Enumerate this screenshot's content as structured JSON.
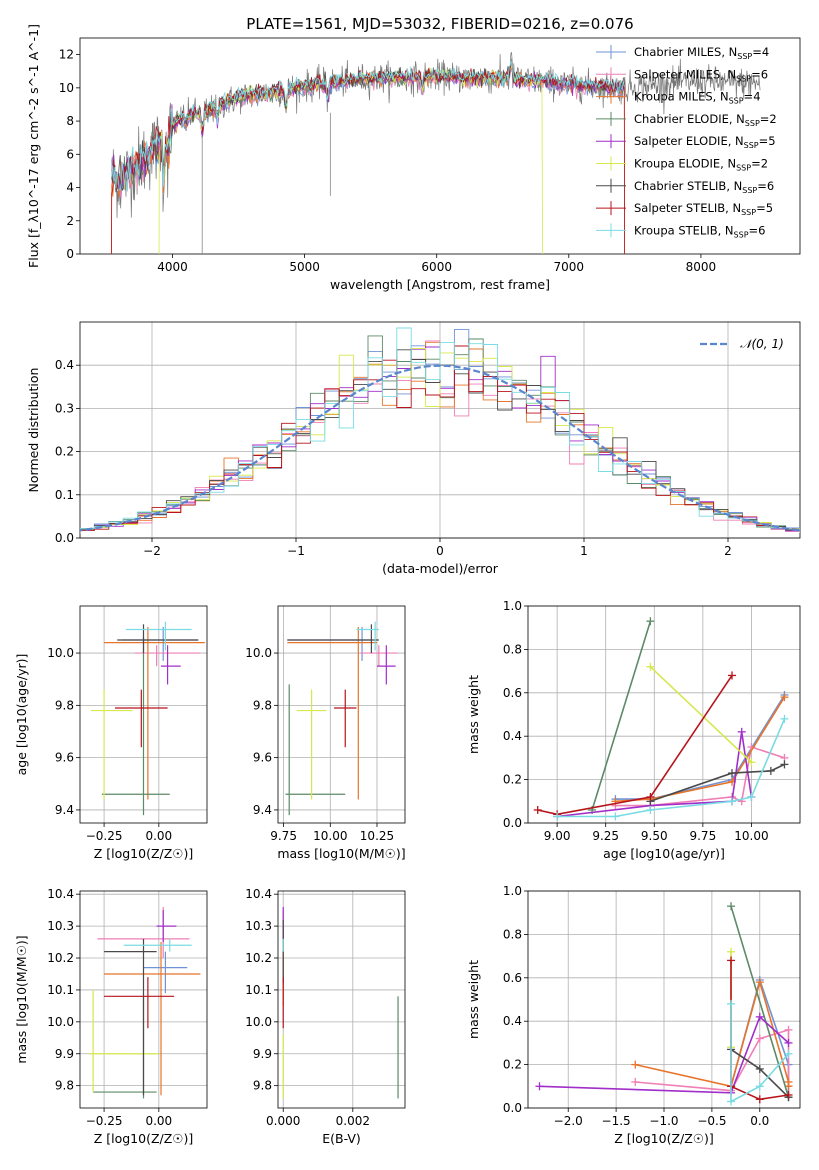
{
  "title": "PLATE=1561, MJD=53032, FIBERID=0216, z=0.076",
  "models": [
    {
      "name": "Chabrier MILES",
      "nssp": "4",
      "color": "#6f93d6"
    },
    {
      "name": "Salpeter MILES",
      "nssp": "6",
      "color": "#ef7fb5"
    },
    {
      "name": "Kroupa MILES",
      "nssp": "4",
      "color": "#e8742a"
    },
    {
      "name": "Chabrier ELODIE",
      "nssp": "2",
      "color": "#5c8a66"
    },
    {
      "name": "Salpeter ELODIE",
      "nssp": "5",
      "color": "#a12ec8"
    },
    {
      "name": "Kroupa ELODIE",
      "nssp": "2",
      "color": "#d6e84c"
    },
    {
      "name": "Chabrier STELIB",
      "nssp": "6",
      "color": "#4a4a4a"
    },
    {
      "name": "Salpeter STELIB",
      "nssp": "5",
      "color": "#b8141c"
    },
    {
      "name": "Kroupa STELIB",
      "nssp": "6",
      "color": "#79dbe3"
    }
  ],
  "chart_data": [
    {
      "id": "spectrum",
      "type": "line",
      "xlabel": "wavelength [Angstrom, rest frame]",
      "ylabel": "Flux [f_λ10^-17 erg cm^-2 s^-1 A^-1]",
      "xlim": [
        3300,
        8750
      ],
      "ylim": [
        0,
        13
      ],
      "xticks": [
        4000,
        5000,
        6000,
        7000,
        8000
      ],
      "yticks": [
        0,
        2,
        4,
        6,
        8,
        10,
        12
      ],
      "grid": false,
      "legend": "right",
      "observed_color": "#777777",
      "continuum": {
        "x": [
          3550,
          3600,
          3700,
          3800,
          3900,
          4000,
          4100,
          4200,
          4300,
          4400,
          4500,
          4600,
          4800,
          5000,
          5200,
          5400,
          5600,
          5800,
          6000,
          6200,
          6400,
          6600,
          6800,
          7000,
          7200,
          7400,
          7600,
          7800,
          8000,
          8200,
          8400
        ],
        "y": [
          4.8,
          4.2,
          5.2,
          5.8,
          6.6,
          7.8,
          8.3,
          8.5,
          8.7,
          9.1,
          9.4,
          9.6,
          9.8,
          10.1,
          10.3,
          10.5,
          10.6,
          10.6,
          10.7,
          10.6,
          10.6,
          10.5,
          10.4,
          10.2,
          10.1,
          10.0,
          10.1,
          10.3,
          10.4,
          10.3,
          10.3
        ]
      }
    },
    {
      "id": "residuals",
      "type": "histogram",
      "xlabel": "(data-model)/error",
      "ylabel": "Normed distribution",
      "xlim": [
        -2.5,
        2.5
      ],
      "ylim": [
        0,
        0.5
      ],
      "xticks": [
        -2,
        -1,
        0,
        1,
        2
      ],
      "yticks": [
        0.0,
        0.1,
        0.2,
        0.3,
        0.4
      ],
      "grid": true,
      "legend": "top-right",
      "reference_label": "𝒩(0, 1)",
      "reference_color": "#5a86cf",
      "bin_width": 0.1
    },
    {
      "id": "age-vs-Z",
      "type": "scatter",
      "xlabel": "Z [log10(Z/Z☉)]",
      "ylabel": "age  [log10(age/yr)]",
      "xlim": [
        -0.36,
        0.22
      ],
      "ylim": [
        9.35,
        10.18
      ],
      "xticks": [
        -0.25,
        0.0
      ],
      "yticks": [
        9.4,
        9.6,
        9.8,
        10.0
      ],
      "grid": true,
      "points": [
        {
          "model": 0,
          "x": 0.02,
          "y": 10.05,
          "xerr": [
            0.19,
            0.16
          ],
          "yerr": [
            0.08,
            0.05
          ]
        },
        {
          "model": 1,
          "x": -0.01,
          "y": 10.0,
          "xerr": [
            0.1,
            0.2
          ],
          "yerr": [
            0.05,
            0.03
          ]
        },
        {
          "model": 2,
          "x": -0.05,
          "y": 10.04,
          "xerr": [
            0.2,
            0.26
          ],
          "yerr": [
            0.6,
            0.06
          ]
        },
        {
          "model": 3,
          "x": -0.07,
          "y": 9.46,
          "xerr": [
            0.19,
            0.12
          ],
          "yerr": [
            0.08,
            0.6
          ]
        },
        {
          "model": 4,
          "x": 0.04,
          "y": 9.95,
          "xerr": [
            0.03,
            0.06
          ],
          "yerr": [
            0.07,
            0.08
          ]
        },
        {
          "model": 5,
          "x": -0.25,
          "y": 9.78,
          "xerr": [
            0.06,
            0.13
          ],
          "yerr": [
            0.34,
            0.08
          ]
        },
        {
          "model": 6,
          "x": -0.07,
          "y": 10.05,
          "xerr": [
            0.12,
            0.25
          ],
          "yerr": [
            0.05,
            0.06
          ]
        },
        {
          "model": 7,
          "x": -0.08,
          "y": 9.79,
          "xerr": [
            0.12,
            0.12
          ],
          "yerr": [
            0.15,
            0.07
          ]
        },
        {
          "model": 8,
          "x": 0.03,
          "y": 10.09,
          "xerr": [
            0.18,
            0.12
          ],
          "yerr": [
            0.08,
            0.03
          ]
        }
      ]
    },
    {
      "id": "age-vs-mass",
      "type": "scatter",
      "xlabel": "mass [log10(M/M☉)]",
      "ylabel": "",
      "xlim": [
        9.72,
        10.4
      ],
      "ylim": [
        9.35,
        10.18
      ],
      "xticks": [
        9.75,
        10.0,
        10.25
      ],
      "yticks": [
        9.4,
        9.6,
        9.8,
        10.0
      ],
      "grid": true,
      "points": [
        {
          "model": 0,
          "x": 10.17,
          "y": 10.05,
          "xerr": [
            0.4,
            0.05
          ],
          "yerr": [
            0.08,
            0.05
          ]
        },
        {
          "model": 1,
          "x": 10.26,
          "y": 10.0,
          "xerr": [
            0.1,
            0.1
          ],
          "yerr": [
            0.05,
            0.03
          ]
        },
        {
          "model": 2,
          "x": 10.15,
          "y": 10.04,
          "xerr": [
            0.38,
            0.1
          ],
          "yerr": [
            0.6,
            0.06
          ]
        },
        {
          "model": 3,
          "x": 9.78,
          "y": 9.46,
          "xerr": [
            0.02,
            0.3
          ],
          "yerr": [
            0.08,
            0.42
          ]
        },
        {
          "model": 4,
          "x": 10.3,
          "y": 9.95,
          "xerr": [
            0.05,
            0.05
          ],
          "yerr": [
            0.07,
            0.08
          ]
        },
        {
          "model": 5,
          "x": 9.9,
          "y": 9.78,
          "xerr": [
            0.08,
            0.08
          ],
          "yerr": [
            0.34,
            0.08
          ]
        },
        {
          "model": 6,
          "x": 10.22,
          "y": 10.05,
          "xerr": [
            0.45,
            0.04
          ],
          "yerr": [
            0.05,
            0.06
          ]
        },
        {
          "model": 7,
          "x": 10.08,
          "y": 9.79,
          "xerr": [
            0.06,
            0.06
          ],
          "yerr": [
            0.15,
            0.07
          ]
        },
        {
          "model": 8,
          "x": 10.24,
          "y": 10.09,
          "xerr": [
            0.1,
            0.02
          ],
          "yerr": [
            0.08,
            0.03
          ]
        }
      ]
    },
    {
      "id": "weight-vs-age",
      "type": "line",
      "xlabel": "age  [log10(age/yr)]",
      "ylabel": "mass weight",
      "xlim": [
        8.85,
        10.25
      ],
      "ylim": [
        0,
        1
      ],
      "xticks": [
        9.0,
        9.25,
        9.5,
        9.75,
        10.0
      ],
      "yticks": [
        0.0,
        0.2,
        0.4,
        0.6,
        0.8,
        1.0
      ],
      "grid": true,
      "series": [
        {
          "model": 0,
          "x": [
            9.3,
            9.48,
            9.9,
            10.17
          ],
          "y": [
            0.11,
            0.11,
            0.2,
            0.59
          ]
        },
        {
          "model": 1,
          "x": [
            9.3,
            9.48,
            9.9,
            9.95,
            10.0,
            10.17
          ],
          "y": [
            0.08,
            0.08,
            0.12,
            0.1,
            0.35,
            0.3
          ]
        },
        {
          "model": 2,
          "x": [
            9.3,
            9.48,
            9.9,
            10.17
          ],
          "y": [
            0.1,
            0.11,
            0.19,
            0.58
          ]
        },
        {
          "model": 3,
          "x": [
            9.18,
            9.48
          ],
          "y": [
            0.06,
            0.93
          ]
        },
        {
          "model": 4,
          "x": [
            9.0,
            9.48,
            9.9,
            9.95,
            10.0
          ],
          "y": [
            0.03,
            0.08,
            0.1,
            0.42,
            0.12
          ]
        },
        {
          "model": 5,
          "x": [
            9.48,
            10.0
          ],
          "y": [
            0.72,
            0.28
          ]
        },
        {
          "model": 6,
          "x": [
            9.48,
            9.9,
            10.1,
            10.17
          ],
          "y": [
            0.1,
            0.23,
            0.24,
            0.27
          ]
        },
        {
          "model": 7,
          "x": [
            8.9,
            9.0,
            9.48,
            9.9
          ],
          "y": [
            0.06,
            0.04,
            0.12,
            0.68
          ]
        },
        {
          "model": 8,
          "x": [
            9.0,
            9.3,
            9.48,
            9.9,
            10.0,
            10.17
          ],
          "y": [
            0.03,
            0.03,
            0.06,
            0.1,
            0.12,
            0.48
          ]
        }
      ]
    },
    {
      "id": "mass-vs-Z",
      "type": "scatter",
      "xlabel": "Z [log10(Z/Z☉)]",
      "ylabel": "mass [log10(M/M☉)]",
      "xlim": [
        -0.36,
        0.22
      ],
      "ylim": [
        9.73,
        10.41
      ],
      "xticks": [
        -0.25,
        0.0
      ],
      "yticks": [
        9.8,
        9.9,
        10.0,
        10.1,
        10.2,
        10.3,
        10.4
      ],
      "grid": true,
      "points": [
        {
          "model": 0,
          "x": 0.03,
          "y": 10.17,
          "xerr": [
            0.1,
            0.1
          ],
          "yerr": [
            0.08,
            0.05
          ]
        },
        {
          "model": 1,
          "x": 0.02,
          "y": 10.26,
          "xerr": [
            0.3,
            0.12
          ],
          "yerr": [
            0.06,
            0.1
          ]
        },
        {
          "model": 2,
          "x": 0.01,
          "y": 10.15,
          "xerr": [
            0.26,
            0.18
          ],
          "yerr": [
            0.38,
            0.1
          ]
        },
        {
          "model": 3,
          "x": -0.07,
          "y": 9.78,
          "xerr": [
            0.23,
            0.06
          ],
          "yerr": [
            0.02,
            0.3
          ]
        },
        {
          "model": 4,
          "x": 0.02,
          "y": 10.3,
          "xerr": [
            0.03,
            0.06
          ],
          "yerr": [
            0.05,
            0.05
          ]
        },
        {
          "model": 5,
          "x": -0.3,
          "y": 9.9,
          "xerr": [
            0.02,
            0.3
          ],
          "yerr": [
            0.12,
            0.2
          ]
        },
        {
          "model": 6,
          "x": -0.07,
          "y": 10.22,
          "xerr": [
            0.18,
            0.06
          ],
          "yerr": [
            0.45,
            0.04
          ]
        },
        {
          "model": 7,
          "x": -0.05,
          "y": 10.08,
          "xerr": [
            0.2,
            0.12
          ],
          "yerr": [
            0.1,
            0.06
          ]
        },
        {
          "model": 8,
          "x": 0.05,
          "y": 10.24,
          "xerr": [
            0.21,
            0.1
          ],
          "yerr": [
            0.02,
            0.02
          ]
        }
      ]
    },
    {
      "id": "mass-vs-ebv",
      "type": "scatter",
      "xlabel": "E(B-V)",
      "ylabel": "",
      "xlim": [
        -0.00015,
        0.0035
      ],
      "ylim": [
        9.73,
        10.41
      ],
      "xticks": [
        0.0,
        0.002
      ],
      "yticks": [
        9.8,
        9.9,
        10.0,
        10.1,
        10.2,
        10.3,
        10.4
      ],
      "grid": true,
      "points": [
        {
          "model": 0,
          "x": 0.0,
          "y": 10.2,
          "xerr": [
            0,
            0
          ],
          "yerr": [
            0.07,
            0.07
          ]
        },
        {
          "model": 1,
          "x": 0.0,
          "y": 10.26,
          "xerr": [
            0,
            0
          ],
          "yerr": [
            0.06,
            0.09
          ]
        },
        {
          "model": 2,
          "x": 0.0,
          "y": 10.15,
          "xerr": [
            0,
            0
          ],
          "yerr": [
            0.1,
            0.1
          ]
        },
        {
          "model": 3,
          "x": 0.0033,
          "y": 9.92,
          "xerr": [
            0,
            0
          ],
          "yerr": [
            0.16,
            0.16
          ]
        },
        {
          "model": 4,
          "x": 0.0,
          "y": 10.3,
          "xerr": [
            0,
            0
          ],
          "yerr": [
            0.05,
            0.06
          ]
        },
        {
          "model": 5,
          "x": 0.0,
          "y": 9.86,
          "xerr": [
            0,
            0
          ],
          "yerr": [
            0.1,
            0.1
          ]
        },
        {
          "model": 6,
          "x": 0.0,
          "y": 10.22,
          "xerr": [
            0,
            0
          ],
          "yerr": [
            0.1,
            0.1
          ]
        },
        {
          "model": 7,
          "x": 0.0,
          "y": 10.06,
          "xerr": [
            0.0,
            0.0
          ],
          "yerr": [
            0.08,
            0.08
          ]
        },
        {
          "model": 8,
          "x": 0.0,
          "y": 10.24,
          "xerr": [
            0,
            0
          ],
          "yerr": [
            0.02,
            0.02
          ]
        }
      ]
    },
    {
      "id": "weight-vs-Z",
      "type": "line",
      "xlabel": "Z [log10(Z/Z☉)]",
      "ylabel": "mass weight",
      "xlim": [
        -2.42,
        0.42
      ],
      "ylim": [
        0,
        1
      ],
      "xticks": [
        -2.0,
        -1.5,
        -1.0,
        -0.5,
        0.0
      ],
      "yticks": [
        0.0,
        0.2,
        0.4,
        0.6,
        0.8,
        1.0
      ],
      "grid": true,
      "series": [
        {
          "model": 0,
          "x": [
            -0.3,
            0.0,
            0.3,
            0.3
          ],
          "y": [
            0.1,
            0.59,
            0.2,
            0.05
          ]
        },
        {
          "model": 1,
          "x": [
            -1.3,
            -0.3,
            0.0,
            0.3,
            0.3
          ],
          "y": [
            0.12,
            0.08,
            0.32,
            0.36,
            0.1
          ]
        },
        {
          "model": 2,
          "x": [
            -1.3,
            -0.3,
            0.0,
            0.3,
            0.3
          ],
          "y": [
            0.2,
            0.1,
            0.58,
            0.12,
            0.1
          ]
        },
        {
          "model": 3,
          "x": [
            -0.3,
            0.3
          ],
          "y": [
            0.93,
            0.05
          ]
        },
        {
          "model": 4,
          "x": [
            -2.3,
            -0.3,
            0.0,
            0.3
          ],
          "y": [
            0.1,
            0.07,
            0.42,
            0.3
          ]
        },
        {
          "model": 5,
          "x": [
            -0.3,
            -0.3
          ],
          "y": [
            0.72,
            0.28
          ]
        },
        {
          "model": 6,
          "x": [
            -0.3,
            0.0,
            0.3
          ],
          "y": [
            0.27,
            0.18,
            0.05
          ]
        },
        {
          "model": 7,
          "x": [
            -0.3,
            -0.3,
            0.0,
            0.3
          ],
          "y": [
            0.68,
            0.1,
            0.04,
            0.06
          ]
        },
        {
          "model": 8,
          "x": [
            -0.3,
            -0.3,
            0.0,
            0.3
          ],
          "y": [
            0.48,
            0.03,
            0.1,
            0.25
          ]
        }
      ]
    }
  ]
}
